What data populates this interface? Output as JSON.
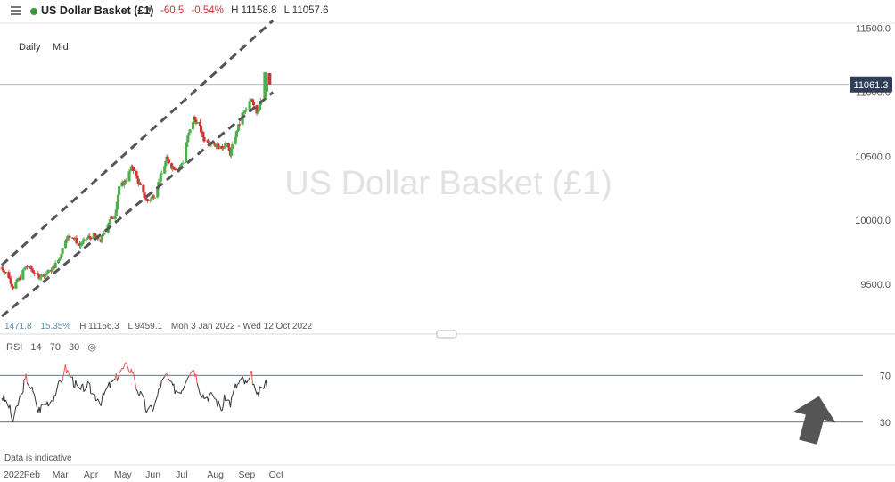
{
  "header": {
    "title": "US Dollar Basket (£1)",
    "change": "-60.5",
    "change_pct": "-0.54%",
    "high": "H 11158.8",
    "low": "L 11057.6",
    "accent_color": "#3a9a3a",
    "negative_color": "#d22f2f"
  },
  "toolbar": {
    "interval": "Daily",
    "price_type": "Mid"
  },
  "watermark": "US Dollar Basket (£1)",
  "price_label": "11061.3",
  "stats": {
    "points": "1471.8",
    "percent": "15.35%",
    "high": "H 11156.3",
    "low": "L 9459.1",
    "range": "Mon 3 Jan 2022 - Wed 12 Oct 2022"
  },
  "rsi": {
    "name": "RSI",
    "period": "14",
    "upper": "70",
    "lower": "30"
  },
  "footer": {
    "note": "Data is indicative",
    "year": "2022"
  },
  "chart_data": [
    {
      "type": "candlestick",
      "title": "US Dollar Basket (£1)",
      "y_ticks": [
        {
          "label": "11500.0",
          "value": 11500
        },
        {
          "label": "11000.0",
          "value": 11000
        },
        {
          "label": "10500.0",
          "value": 10500
        },
        {
          "label": "10000.0",
          "value": 10000
        },
        {
          "label": "9500.0",
          "value": 9500
        }
      ],
      "ylim": [
        9250,
        11540
      ],
      "x_range": [
        "2022-01-03",
        "2022-09-22"
      ],
      "x_ticks": [
        "2022",
        "Feb",
        "Mar",
        "Apr",
        "May",
        "Jun",
        "Jul",
        "Aug",
        "Sep",
        "Oct"
      ],
      "close_path": [
        [
          "2022-01-03",
          9630
        ],
        [
          "2022-01-10",
          9560
        ],
        [
          "2022-01-14",
          9480
        ],
        [
          "2022-01-20",
          9540
        ],
        [
          "2022-01-27",
          9640
        ],
        [
          "2022-02-01",
          9620
        ],
        [
          "2022-02-08",
          9560
        ],
        [
          "2022-02-15",
          9580
        ],
        [
          "2022-02-22",
          9620
        ],
        [
          "2022-03-01",
          9700
        ],
        [
          "2022-03-07",
          9860
        ],
        [
          "2022-03-14",
          9880
        ],
        [
          "2022-03-21",
          9800
        ],
        [
          "2022-03-28",
          9860
        ],
        [
          "2022-04-04",
          9880
        ],
        [
          "2022-04-11",
          9840
        ],
        [
          "2022-04-18",
          9980
        ],
        [
          "2022-04-25",
          10050
        ],
        [
          "2022-04-29",
          10250
        ],
        [
          "2022-05-06",
          10320
        ],
        [
          "2022-05-12",
          10420
        ],
        [
          "2022-05-16",
          10340
        ],
        [
          "2022-05-23",
          10200
        ],
        [
          "2022-05-27",
          10150
        ],
        [
          "2022-06-03",
          10200
        ],
        [
          "2022-06-09",
          10340
        ],
        [
          "2022-06-15",
          10480
        ],
        [
          "2022-06-20",
          10420
        ],
        [
          "2022-06-27",
          10400
        ],
        [
          "2022-07-01",
          10460
        ],
        [
          "2022-07-06",
          10650
        ],
        [
          "2022-07-12",
          10800
        ],
        [
          "2022-07-18",
          10720
        ],
        [
          "2022-07-22",
          10630
        ],
        [
          "2022-08-01",
          10600
        ],
        [
          "2022-08-08",
          10560
        ],
        [
          "2022-08-12",
          10600
        ],
        [
          "2022-08-17",
          10520
        ],
        [
          "2022-08-22",
          10660
        ],
        [
          "2022-08-29",
          10830
        ],
        [
          "2022-09-02",
          10860
        ],
        [
          "2022-09-07",
          10960
        ],
        [
          "2022-09-12",
          10840
        ],
        [
          "2022-09-16",
          10920
        ],
        [
          "2022-09-20",
          10950
        ],
        [
          "2022-09-22",
          11061.3
        ]
      ],
      "trendlines": [
        {
          "name": "upper-channel",
          "points": [
            [
              "2022-01-03",
              9650
            ],
            [
              "2022-09-28",
              11560
            ]
          ]
        },
        {
          "name": "lower-channel",
          "points": [
            [
              "2022-01-03",
              9250
            ],
            [
              "2022-09-28",
              11000
            ]
          ]
        }
      ],
      "current_price": 11061.3
    },
    {
      "type": "line",
      "title": "RSI 14 70 30",
      "levels": [
        70,
        30
      ],
      "y_ticks": [
        "70",
        "30"
      ],
      "ylim": [
        10,
        90
      ],
      "values_path": [
        [
          "2022-01-03",
          52
        ],
        [
          "2022-01-10",
          44
        ],
        [
          "2022-01-14",
          30
        ],
        [
          "2022-01-20",
          48
        ],
        [
          "2022-01-27",
          68
        ],
        [
          "2022-02-01",
          60
        ],
        [
          "2022-02-08",
          40
        ],
        [
          "2022-02-15",
          46
        ],
        [
          "2022-02-22",
          50
        ],
        [
          "2022-03-01",
          62
        ],
        [
          "2022-03-07",
          76
        ],
        [
          "2022-03-14",
          66
        ],
        [
          "2022-03-21",
          56
        ],
        [
          "2022-03-28",
          62
        ],
        [
          "2022-04-04",
          54
        ],
        [
          "2022-04-11",
          48
        ],
        [
          "2022-04-18",
          60
        ],
        [
          "2022-04-25",
          66
        ],
        [
          "2022-04-29",
          72
        ],
        [
          "2022-05-06",
          78
        ],
        [
          "2022-05-12",
          74
        ],
        [
          "2022-05-16",
          60
        ],
        [
          "2022-05-23",
          48
        ],
        [
          "2022-05-27",
          38
        ],
        [
          "2022-06-03",
          44
        ],
        [
          "2022-06-09",
          62
        ],
        [
          "2022-06-15",
          70
        ],
        [
          "2022-06-20",
          60
        ],
        [
          "2022-06-27",
          56
        ],
        [
          "2022-07-01",
          60
        ],
        [
          "2022-07-06",
          72
        ],
        [
          "2022-07-12",
          76
        ],
        [
          "2022-07-18",
          58
        ],
        [
          "2022-07-22",
          52
        ],
        [
          "2022-08-01",
          52
        ],
        [
          "2022-08-08",
          40
        ],
        [
          "2022-08-12",
          52
        ],
        [
          "2022-08-17",
          46
        ],
        [
          "2022-08-22",
          60
        ],
        [
          "2022-08-29",
          66
        ],
        [
          "2022-09-02",
          62
        ],
        [
          "2022-09-07",
          70
        ],
        [
          "2022-09-12",
          50
        ],
        [
          "2022-09-16",
          58
        ],
        [
          "2022-09-20",
          62
        ],
        [
          "2022-09-22",
          64
        ]
      ]
    }
  ]
}
